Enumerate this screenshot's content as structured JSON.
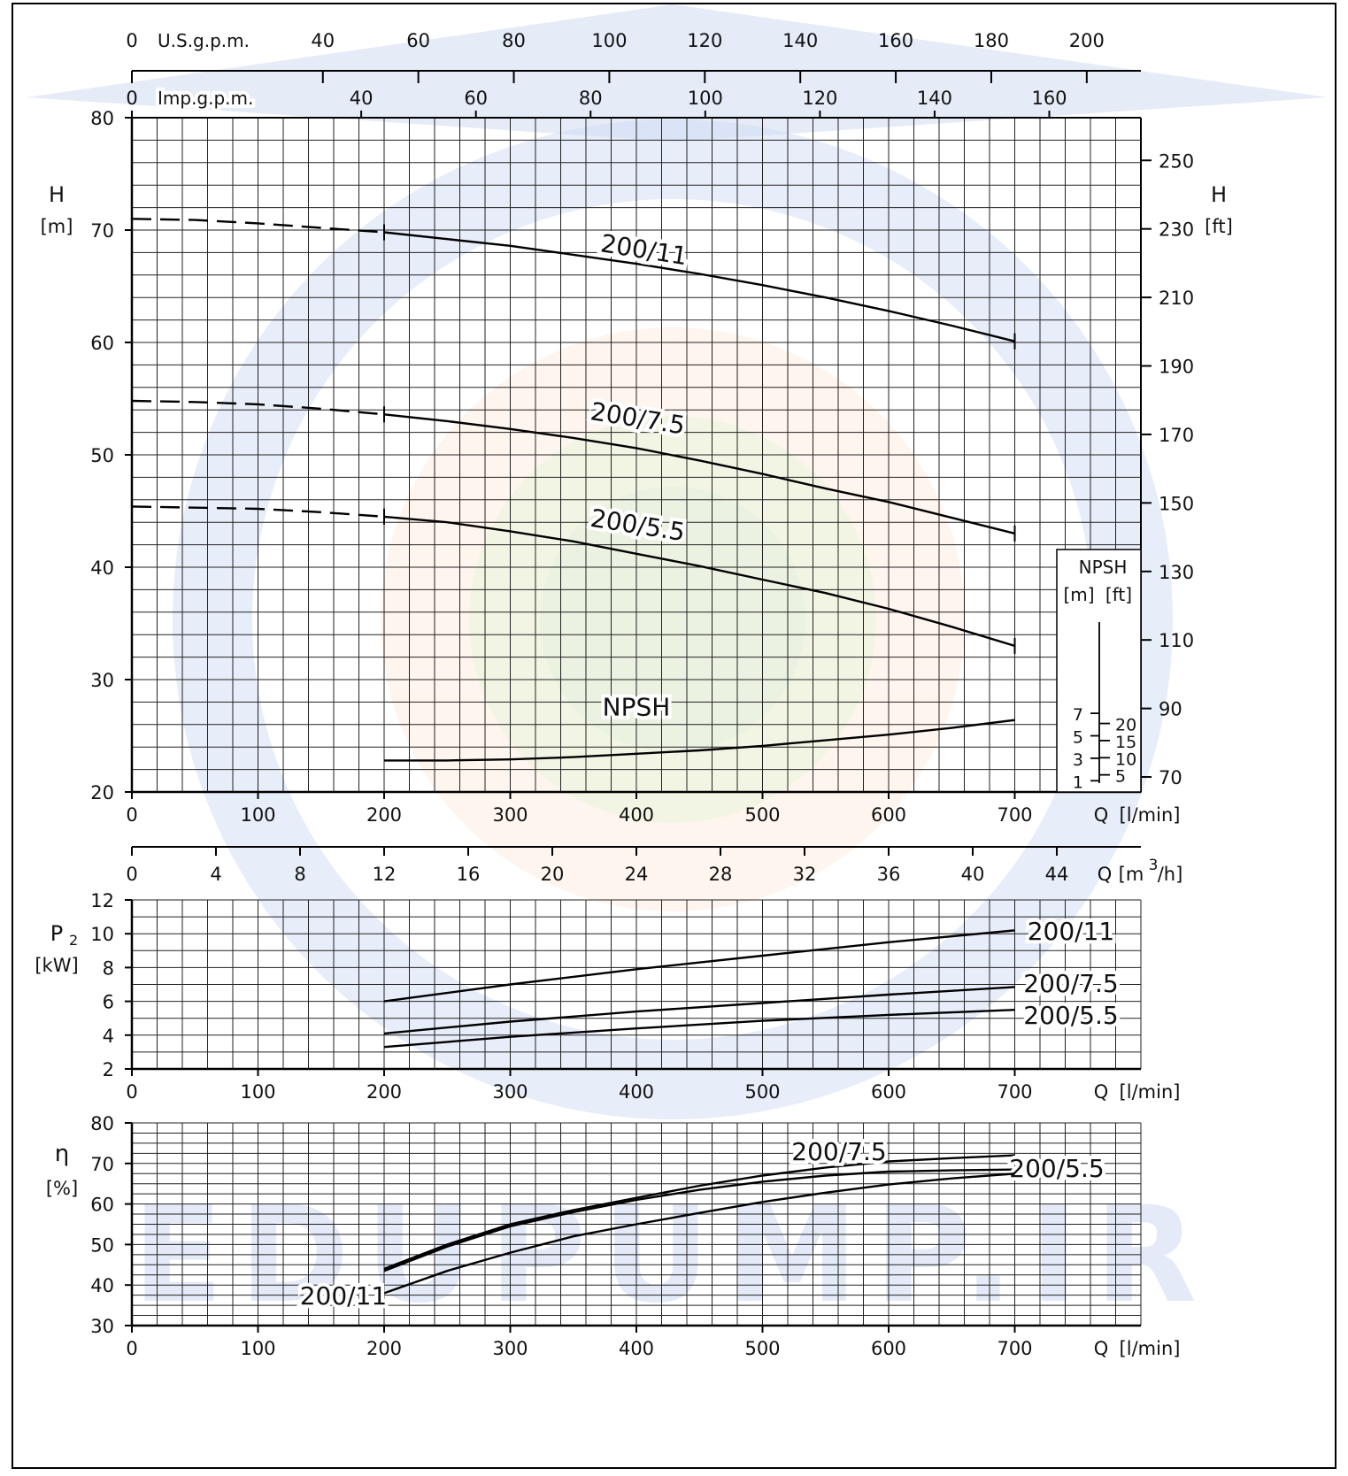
{
  "watermark": {
    "text": "EDUPUMP.IR",
    "color": "#9fb6e6"
  },
  "chart_data": [
    {
      "id": "head",
      "type": "line",
      "title": "",
      "y_label": "H",
      "y_unit": "[m]",
      "y_right_label": "H",
      "y_right_unit": "[ft]",
      "xlim": [
        0,
        800
      ],
      "ylim": [
        20,
        80
      ],
      "x_ticks": [
        0,
        100,
        200,
        300,
        400,
        500,
        600,
        700
      ],
      "y_ticks": [
        20,
        30,
        40,
        50,
        60,
        70,
        80
      ],
      "y_right_ticks": [
        70,
        90,
        110,
        130,
        150,
        170,
        190,
        210,
        230,
        250
      ],
      "x_axis_label": "Q",
      "x_axis_unit": "[l/min]",
      "top_axes": [
        {
          "label": "U.S.g.p.m.",
          "ticks": [
            0,
            40,
            60,
            80,
            100,
            120,
            140,
            160,
            180,
            200
          ],
          "factor": 0.264172
        },
        {
          "label": "Imp.g.p.m.",
          "ticks": [
            0,
            40,
            60,
            80,
            100,
            120,
            140,
            160
          ],
          "factor": 0.219969
        }
      ],
      "series": [
        {
          "name": "200/11",
          "label_at": [
            405,
            67.5
          ],
          "label_angle": 9,
          "x": [
            0,
            50,
            100,
            150,
            200,
            250,
            300,
            350,
            400,
            450,
            500,
            550,
            600,
            650,
            700
          ],
          "y": [
            71.0,
            70.9,
            70.6,
            70.2,
            69.8,
            69.2,
            68.6,
            67.8,
            67.0,
            66.1,
            65.1,
            64.0,
            62.8,
            61.5,
            60.1
          ],
          "dashed_until": 200
        },
        {
          "name": "200/7.5",
          "label_at": [
            400,
            52.5
          ],
          "label_angle": 9,
          "x": [
            0,
            50,
            100,
            150,
            200,
            250,
            300,
            350,
            400,
            450,
            500,
            550,
            600,
            650,
            700
          ],
          "y": [
            54.8,
            54.7,
            54.5,
            54.1,
            53.6,
            53.0,
            52.3,
            51.5,
            50.6,
            49.5,
            48.3,
            47.0,
            45.8,
            44.4,
            43.0
          ],
          "dashed_until": 200
        },
        {
          "name": "200/5.5",
          "label_at": [
            400,
            43.0
          ],
          "label_angle": 9,
          "x": [
            0,
            50,
            100,
            150,
            200,
            250,
            300,
            350,
            400,
            450,
            500,
            550,
            600,
            650,
            700
          ],
          "y": [
            45.4,
            45.3,
            45.2,
            44.9,
            44.5,
            44.0,
            43.2,
            42.3,
            41.2,
            40.1,
            38.9,
            37.7,
            36.3,
            34.7,
            33.0
          ],
          "dashed_until": 200
        },
        {
          "name": "NPSH",
          "label_at": [
            400,
            26.8
          ],
          "label_angle": 0,
          "x": [
            200,
            250,
            300,
            350,
            400,
            450,
            500,
            550,
            600,
            650,
            700
          ],
          "y": [
            22.8,
            22.8,
            22.9,
            23.1,
            23.4,
            23.7,
            24.1,
            24.6,
            25.1,
            25.7,
            26.4
          ]
        }
      ],
      "npsh_inset": {
        "title": "NPSH",
        "unit_m": "[m]",
        "unit_ft": "[ft]",
        "m_ticks": [
          1,
          3,
          5,
          7
        ],
        "ft_ticks": [
          5,
          10,
          15,
          20
        ]
      },
      "second_x_axis": {
        "label": "Q",
        "unit": "[m",
        "unit_sup": "3",
        "unit_end": "/h]",
        "ticks": [
          0,
          4,
          8,
          12,
          16,
          20,
          24,
          28,
          32,
          36,
          40,
          44
        ]
      }
    },
    {
      "id": "power",
      "type": "line",
      "y_label": "P",
      "y_label_sub": "2",
      "y_unit": "[kW]",
      "xlim": [
        0,
        800
      ],
      "ylim": [
        2,
        12
      ],
      "x_ticks": [
        0,
        100,
        200,
        300,
        400,
        500,
        600,
        700
      ],
      "y_ticks": [
        2,
        4,
        6,
        8,
        10,
        12
      ],
      "x_axis_label": "Q",
      "x_axis_unit": "[l/min]",
      "series": [
        {
          "name": "200/11",
          "x": [
            200,
            300,
            400,
            500,
            600,
            700
          ],
          "y": [
            6.0,
            7.0,
            7.9,
            8.7,
            9.5,
            10.2
          ]
        },
        {
          "name": "200/7.5",
          "x": [
            200,
            300,
            400,
            500,
            600,
            700
          ],
          "y": [
            4.1,
            4.8,
            5.4,
            5.9,
            6.4,
            6.85
          ]
        },
        {
          "name": "200/5.5",
          "x": [
            200,
            300,
            400,
            500,
            600,
            700
          ],
          "y": [
            3.3,
            3.9,
            4.4,
            4.85,
            5.2,
            5.5
          ]
        }
      ]
    },
    {
      "id": "efficiency",
      "type": "line",
      "y_label": "η",
      "y_unit": "[%]",
      "xlim": [
        0,
        800
      ],
      "ylim": [
        30,
        80
      ],
      "x_ticks": [
        0,
        100,
        200,
        300,
        400,
        500,
        600,
        700
      ],
      "y_ticks": [
        30,
        40,
        50,
        60,
        70,
        80
      ],
      "x_axis_label": "Q",
      "x_axis_unit": "[l/min]",
      "series": [
        {
          "name": "200/7.5",
          "x": [
            200,
            250,
            300,
            350,
            400,
            450,
            500,
            550,
            600,
            650,
            700
          ],
          "y": [
            44.0,
            50.0,
            55.0,
            58.5,
            61.5,
            64.5,
            67.0,
            69.0,
            70.5,
            71.3,
            72.0
          ]
        },
        {
          "name": "200/5.5",
          "x": [
            200,
            250,
            300,
            350,
            400,
            450,
            500,
            550,
            600,
            650,
            700
          ],
          "y": [
            43.5,
            49.5,
            54.5,
            58.0,
            61.0,
            63.5,
            65.5,
            67.0,
            68.0,
            68.3,
            68.5
          ]
        },
        {
          "name": "200/11",
          "x": [
            200,
            250,
            300,
            350,
            400,
            450,
            500,
            550,
            600,
            650,
            700
          ],
          "y": [
            38.0,
            43.5,
            48.0,
            52.0,
            55.0,
            57.8,
            60.5,
            62.8,
            64.8,
            66.3,
            67.5
          ]
        }
      ]
    }
  ]
}
